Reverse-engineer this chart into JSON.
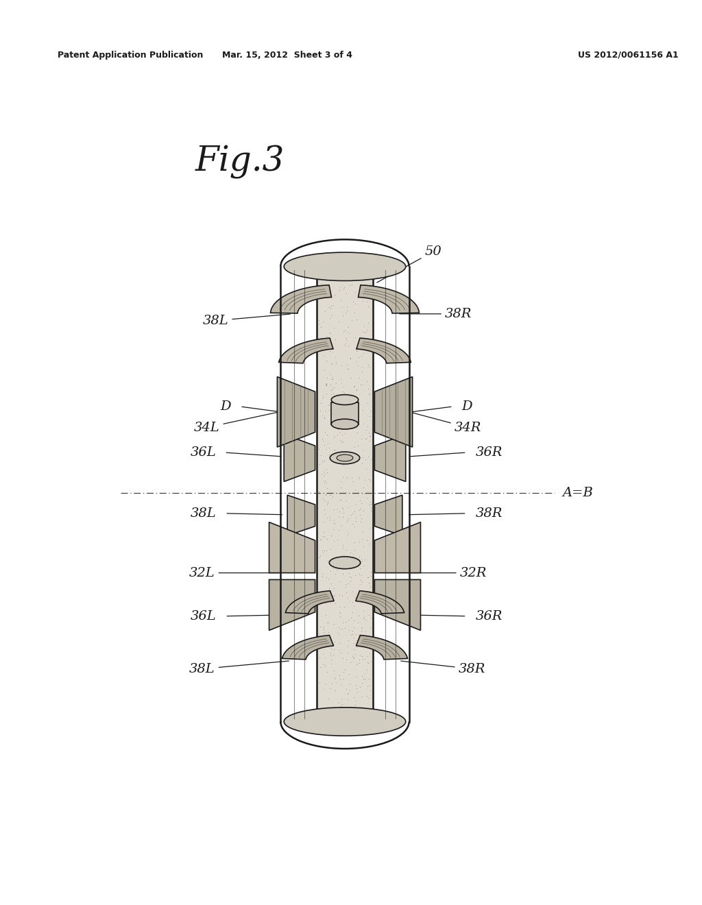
{
  "background_color": "#ffffff",
  "header_left": "Patent Application Publication",
  "header_center": "Mar. 15, 2012  Sheet 3 of 4",
  "header_right": "US 2012/0061156 A1",
  "fig_label": "Fig.3",
  "label_50": "50",
  "label_38L_top": "38L",
  "label_38R_top": "38R",
  "label_D_left": "D",
  "label_D_right": "D",
  "label_34L": "34L",
  "label_34R": "34R",
  "label_36L_top": "36L",
  "label_36R_top": "36R",
  "label_38L_mid": "38L",
  "label_38R_mid": "38R",
  "label_32L": "32L",
  "label_32R": "32R",
  "label_36L_bot": "36L",
  "label_36R_bot": "36R",
  "label_38L_bot": "38L",
  "label_38R_bot": "38R",
  "label_AB": "A=B",
  "line_color": "#1a1a1a",
  "cyl_fill": "#e0dbd0",
  "roller_fill_dark": "#c8c2b4",
  "roller_fill_light": "#ddd8cc",
  "hub_fill": "#d0ccc0"
}
